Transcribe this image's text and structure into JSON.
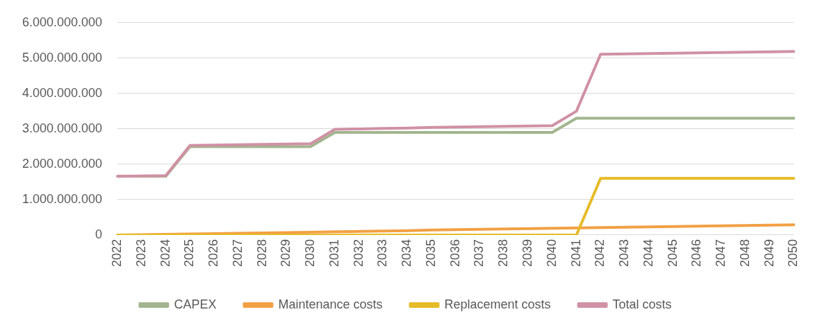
{
  "chart_data": {
    "type": "line",
    "categories": [
      "2022",
      "2023",
      "2024",
      "2025",
      "2026",
      "2027",
      "2028",
      "2029",
      "2030",
      "2031",
      "2032",
      "2033",
      "2034",
      "2035",
      "2036",
      "2037",
      "2038",
      "2039",
      "2040",
      "2041",
      "2042",
      "2043",
      "2044",
      "2045",
      "2046",
      "2047",
      "2048",
      "2049",
      "2050"
    ],
    "series": [
      {
        "name": "CAPEX",
        "color": "#a2b58f",
        "values": [
          1660000000,
          1660000000,
          1660000000,
          2500000000,
          2500000000,
          2500000000,
          2500000000,
          2500000000,
          2500000000,
          2900000000,
          2900000000,
          2900000000,
          2900000000,
          2900000000,
          2900000000,
          2900000000,
          2900000000,
          2900000000,
          2900000000,
          3300000000,
          3300000000,
          3300000000,
          3300000000,
          3300000000,
          3300000000,
          3300000000,
          3300000000,
          3300000000,
          3300000000
        ]
      },
      {
        "name": "Maintenance costs",
        "color": "#f2a044",
        "values": [
          0,
          10000000,
          20000000,
          30000000,
          40000000,
          50000000,
          60000000,
          70000000,
          80000000,
          90000000,
          100000000,
          110000000,
          120000000,
          140000000,
          150000000,
          160000000,
          170000000,
          180000000,
          190000000,
          200000000,
          210000000,
          220000000,
          230000000,
          240000000,
          250000000,
          260000000,
          270000000,
          280000000,
          290000000
        ]
      },
      {
        "name": "Replacement costs",
        "color": "#e6bb27",
        "values": [
          0,
          0,
          0,
          0,
          0,
          0,
          0,
          0,
          0,
          0,
          0,
          0,
          0,
          0,
          0,
          0,
          0,
          0,
          0,
          0,
          1600000000,
          1600000000,
          1600000000,
          1600000000,
          1600000000,
          1600000000,
          1600000000,
          1600000000,
          1600000000
        ]
      },
      {
        "name": "Total costs",
        "color": "#d091a4",
        "values": [
          1660000000,
          1670000000,
          1680000000,
          2530000000,
          2540000000,
          2550000000,
          2560000000,
          2570000000,
          2580000000,
          2990000000,
          3000000000,
          3010000000,
          3020000000,
          3040000000,
          3050000000,
          3060000000,
          3070000000,
          3080000000,
          3090000000,
          3500000000,
          5110000000,
          5120000000,
          5130000000,
          5140000000,
          5150000000,
          5160000000,
          5170000000,
          5180000000,
          5190000000
        ]
      }
    ],
    "ylim": [
      0,
      6000000000
    ],
    "yticks": [
      0,
      {
        "value": 1000000000,
        "label": "1.000.000.000"
      },
      {
        "value": 2000000000,
        "label": "2.000.000.000"
      },
      {
        "value": 3000000000,
        "label": "3.000.000.000"
      },
      {
        "value": 4000000000,
        "label": "4.000.000.000"
      },
      {
        "value": 5000000000,
        "label": "5.000.000.000"
      },
      {
        "value": 6000000000,
        "label": "6.000.000.000"
      }
    ],
    "grid": "y",
    "legend": "bottom",
    "marker": "none",
    "line_style": "solid"
  }
}
